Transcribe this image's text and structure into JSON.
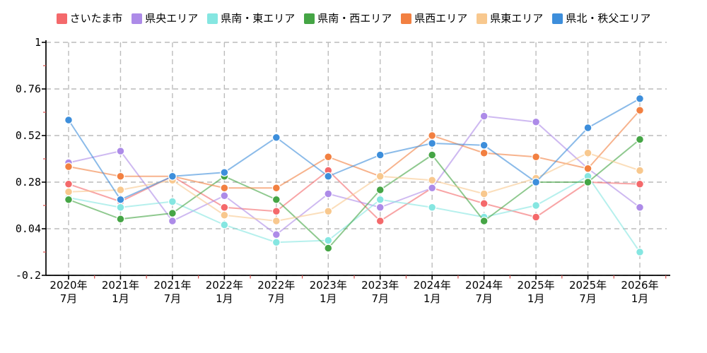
{
  "chart_data": {
    "type": "line",
    "title": "",
    "xlabel": "",
    "ylabel": "",
    "categories": [
      "2020年7月",
      "2021年1月",
      "2021年7月",
      "2022年1月",
      "2022年7月",
      "2023年1月",
      "2023年7月",
      "2024年1月",
      "2024年7月",
      "2025年1月",
      "2025年7月",
      "2026年1月"
    ],
    "yticks": [
      1,
      0.76,
      0.52,
      0.28,
      0.04,
      -0.2
    ],
    "ytick_labels": [
      "1",
      "0.76",
      "0.52",
      "0.28",
      "0.04",
      "-0.2"
    ],
    "ylim": [
      -0.2,
      1
    ],
    "grid": "dashed",
    "legend_position": "top",
    "series": [
      {
        "name": "さいたま市",
        "color": "#f4696b",
        "values": [
          0.27,
          0.18,
          0.31,
          0.15,
          0.13,
          0.34,
          0.08,
          0.25,
          0.17,
          0.1,
          0.28,
          0.27
        ]
      },
      {
        "name": "県央エリア",
        "color": "#ad8be8",
        "values": [
          0.38,
          0.44,
          0.08,
          0.21,
          0.01,
          0.22,
          0.15,
          0.25,
          0.62,
          0.59,
          0.35,
          0.15
        ]
      },
      {
        "name": "県南・東エリア",
        "color": "#85e6e1",
        "values": [
          0.2,
          0.15,
          0.18,
          0.06,
          -0.03,
          -0.02,
          0.19,
          0.15,
          0.1,
          0.16,
          0.31,
          -0.08
        ]
      },
      {
        "name": "県南・西エリア",
        "color": "#45a545",
        "values": [
          0.19,
          0.09,
          0.12,
          0.31,
          0.19,
          -0.06,
          0.24,
          0.42,
          0.08,
          0.28,
          0.28,
          0.5
        ]
      },
      {
        "name": "県西エリア",
        "color": "#f28041",
        "values": [
          0.36,
          0.31,
          0.31,
          0.25,
          0.25,
          0.41,
          0.31,
          0.52,
          0.43,
          0.41,
          0.35,
          0.65
        ]
      },
      {
        "name": "県東エリア",
        "color": "#f8c88e",
        "values": [
          0.23,
          0.24,
          0.29,
          0.11,
          0.08,
          0.13,
          0.31,
          0.29,
          0.22,
          0.3,
          0.43,
          0.34
        ]
      },
      {
        "name": "県北・秩父エリア",
        "color": "#3d8edb",
        "values": [
          0.6,
          0.19,
          0.31,
          0.33,
          0.51,
          0.31,
          0.42,
          0.48,
          0.47,
          0.28,
          0.56,
          0.71
        ]
      }
    ]
  },
  "style": {
    "grid_color": "#bcbcbc",
    "axis_color": "#000000",
    "minor_tick_color": "#d9534f",
    "background": "#ffffff"
  }
}
